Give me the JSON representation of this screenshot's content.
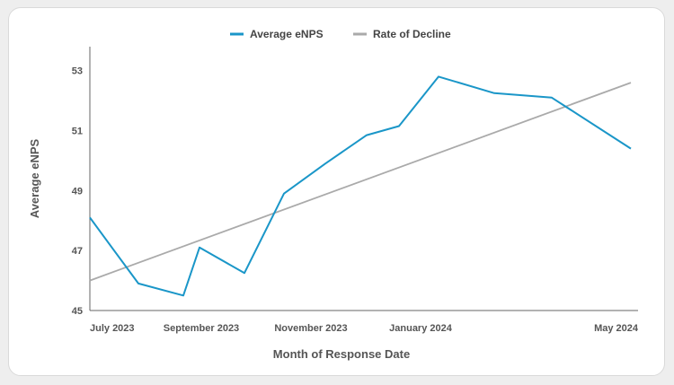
{
  "chart_data": {
    "type": "line",
    "xlabel": "Month of Response Date",
    "ylabel": "Average eNPS",
    "ylim": [
      45,
      53.8
    ],
    "y_ticks": [
      45,
      47,
      49,
      51,
      53
    ],
    "x_range": [
      "2023-07-01",
      "2024-05-01"
    ],
    "x_ticks": [
      {
        "date": "2023-07-01",
        "label": "July 2023"
      },
      {
        "date": "2023-09-01",
        "label": "September 2023"
      },
      {
        "date": "2023-11-01",
        "label": "November 2023"
      },
      {
        "date": "2024-01-01",
        "label": "January 2024"
      },
      {
        "date": "2024-05-01",
        "label": "May 2024"
      }
    ],
    "legend": "top-center",
    "grid": false,
    "series": [
      {
        "name": "Average eNPS",
        "color": "#1a96c8",
        "points": [
          {
            "x": "2023-07-01",
            "y": 48.1
          },
          {
            "x": "2023-07-28",
            "y": 45.9
          },
          {
            "x": "2023-08-22",
            "y": 45.5
          },
          {
            "x": "2023-08-31",
            "y": 47.1
          },
          {
            "x": "2023-09-25",
            "y": 46.25
          },
          {
            "x": "2023-10-17",
            "y": 48.9
          },
          {
            "x": "2023-11-09",
            "y": 49.9
          },
          {
            "x": "2023-12-02",
            "y": 50.85
          },
          {
            "x": "2023-12-20",
            "y": 51.15
          },
          {
            "x": "2024-01-11",
            "y": 52.8
          },
          {
            "x": "2024-02-11",
            "y": 52.25
          },
          {
            "x": "2024-03-14",
            "y": 52.1
          },
          {
            "x": "2024-04-27",
            "y": 50.4
          }
        ]
      },
      {
        "name": "Rate of Decline",
        "color": "#aaaaaa",
        "points": [
          {
            "x": "2023-07-01",
            "y": 46.0
          },
          {
            "x": "2024-04-27",
            "y": 52.6
          }
        ]
      }
    ]
  }
}
